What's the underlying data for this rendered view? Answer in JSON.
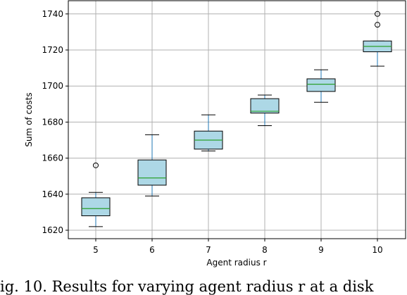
{
  "chart_data": {
    "type": "boxplot",
    "title": "",
    "xlabel": "Agent radius r",
    "ylabel": "Sum of costs",
    "categories": [
      "5",
      "6",
      "7",
      "8",
      "9",
      "10"
    ],
    "ylim": [
      1615,
      1745
    ],
    "yticks": [
      1620,
      1640,
      1660,
      1680,
      1700,
      1720,
      1740
    ],
    "grid": true,
    "colors": {
      "box_fill": "#add8e6",
      "box_edge": "#000000",
      "median": "#2ca02c",
      "whisker": "#1f77b4",
      "cap": "#000000",
      "grid": "#b0b0b0"
    },
    "boxes": [
      {
        "label": "5",
        "whislo": 1622,
        "q1": 1628,
        "med": 1632,
        "q3": 1638,
        "whishi": 1641,
        "fliers": [
          1656
        ]
      },
      {
        "label": "6",
        "whislo": 1639,
        "q1": 1645,
        "med": 1649,
        "q3": 1659,
        "whishi": 1673,
        "fliers": []
      },
      {
        "label": "7",
        "whislo": 1664,
        "q1": 1665,
        "med": 1670,
        "q3": 1675,
        "whishi": 1684,
        "fliers": []
      },
      {
        "label": "8",
        "whislo": 1678,
        "q1": 1685,
        "med": 1686,
        "q3": 1693,
        "whishi": 1695,
        "fliers": []
      },
      {
        "label": "9",
        "whislo": 1691,
        "q1": 1697,
        "med": 1701,
        "q3": 1704,
        "whishi": 1709,
        "fliers": []
      },
      {
        "label": "10",
        "whislo": 1711,
        "q1": 1719,
        "med": 1722,
        "q3": 1725,
        "whishi": 1725,
        "fliers": [
          1734,
          1740
        ]
      }
    ]
  },
  "caption": "ig. 10. Results for varying agent radius r at a disk"
}
